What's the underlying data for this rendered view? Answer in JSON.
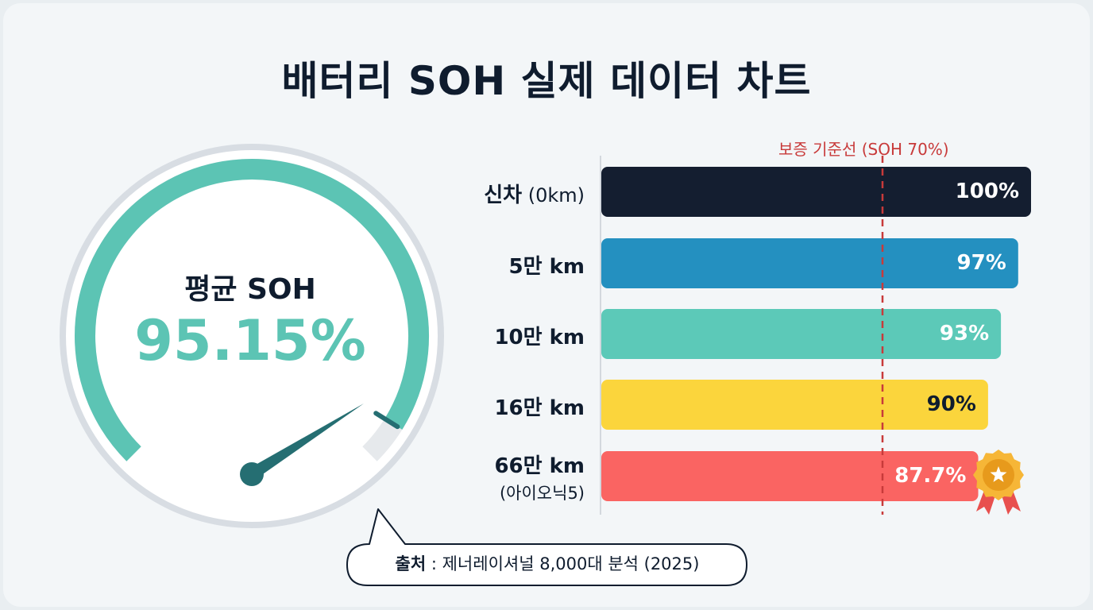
{
  "title": "배터리 SOH 실제 데이터 차트",
  "gauge": {
    "label": "평균 SOH",
    "value_text": "95.15%",
    "value": 95.15,
    "arc_color": "#5cc4b4",
    "needle_color": "#256e72"
  },
  "guide": {
    "label": "보증 기준선 (SOH 70%)",
    "value": 70,
    "color": "#c83a3a"
  },
  "source": {
    "prefix": "출처",
    "separator": " : ",
    "text": "제너레이셔널 8,000대 분석 (2025)"
  },
  "badge": {
    "icon": "award-medal-icon"
  },
  "chart_data": {
    "type": "bar",
    "orientation": "horizontal",
    "title": "배터리 SOH 실제 데이터 차트",
    "categories": [
      "신차 (0km)",
      "5만 km",
      "10만 km",
      "16만 km",
      "66만 km (아이오닉5)"
    ],
    "category_parts": [
      {
        "main": "신차",
        "rest": " (0km)",
        "sub": ""
      },
      {
        "main": "5만 km",
        "rest": "",
        "sub": ""
      },
      {
        "main": "10만 km",
        "rest": "",
        "sub": ""
      },
      {
        "main": "16만 km",
        "rest": "",
        "sub": ""
      },
      {
        "main": "66만 km",
        "rest": "",
        "sub": "(아이오닉5)"
      }
    ],
    "values": [
      100,
      97,
      93,
      90,
      87.7
    ],
    "value_labels": [
      "100%",
      "97%",
      "93%",
      "90%",
      "87.7%"
    ],
    "colors": [
      "#141e30",
      "#2490c0",
      "#5cc9b8",
      "#fbd53c",
      "#fa6462"
    ],
    "label_colors": [
      "#ffffff",
      "#ffffff",
      "#ffffff",
      "#0f1c2e",
      "#ffffff"
    ],
    "reference_line": {
      "value": 70,
      "label": "보증 기준선 (SOH 70%)"
    },
    "grid": false,
    "legend": "none"
  }
}
